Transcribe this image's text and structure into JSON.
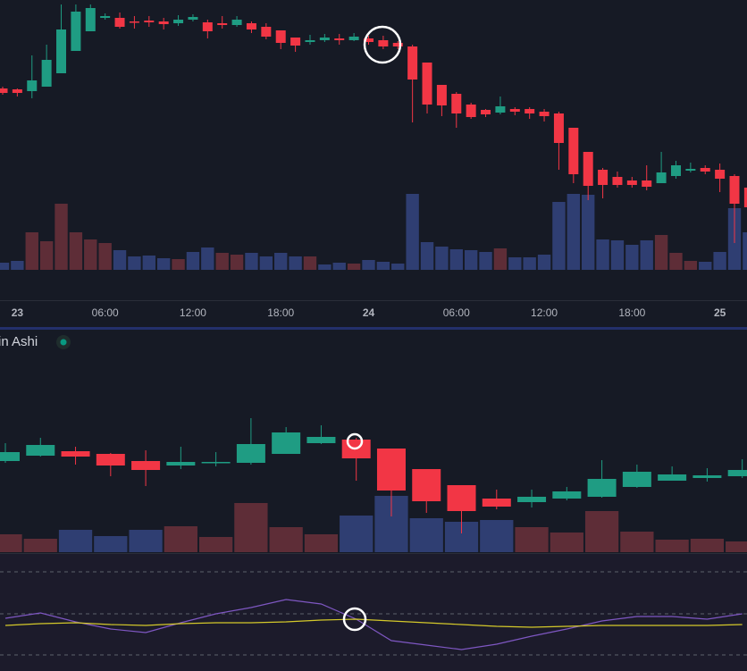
{
  "chart_data": [
    {
      "type": "candlestick",
      "categories": [
        null,
        "23",
        null,
        null,
        null,
        null,
        null,
        "06:00",
        null,
        null,
        null,
        null,
        null,
        "12:00",
        null,
        null,
        null,
        null,
        null,
        "18:00",
        null,
        null,
        null,
        null,
        null,
        "24",
        null,
        null,
        null,
        null,
        null,
        "06:00",
        null,
        null,
        null,
        null,
        null,
        "12:00",
        null,
        null,
        null,
        null,
        null,
        "18:00",
        null,
        null,
        null,
        null,
        null,
        "25",
        null,
        null
      ],
      "open": [
        237,
        236,
        234,
        239,
        254,
        279,
        301,
        316,
        316,
        312,
        313,
        312,
        310,
        314,
        311,
        310,
        308,
        310,
        306,
        302,
        294,
        289,
        291,
        293,
        291,
        293,
        291,
        288,
        284,
        266,
        241,
        231,
        219,
        213,
        210,
        214,
        214,
        211,
        209,
        193,
        166,
        146,
        138,
        134,
        134,
        131,
        139,
        145,
        148,
        146,
        139,
        126
      ],
      "high": [
        239,
        237,
        274,
        286,
        331,
        331,
        331,
        321,
        322,
        318,
        318,
        316,
        319,
        320,
        314,
        318,
        318,
        312,
        310,
        302,
        294,
        297,
        298,
        298,
        299,
        296,
        296,
        290,
        286,
        266,
        241,
        233,
        221,
        214,
        228,
        216,
        216,
        214,
        211,
        193,
        166,
        148,
        144,
        138,
        151,
        166,
        156,
        154,
        151,
        153,
        141,
        131
      ],
      "low": [
        230,
        228,
        226,
        239,
        254,
        279,
        301,
        314,
        304,
        304,
        306,
        303,
        307,
        312,
        293,
        304,
        306,
        299,
        292,
        281,
        278,
        286,
        289,
        286,
        290,
        286,
        281,
        281,
        199,
        209,
        206,
        193,
        203,
        205,
        208,
        207,
        203,
        200,
        146,
        131,
        112,
        114,
        126,
        126,
        123,
        131,
        136,
        143,
        141,
        121,
        64,
        101
      ],
      "close": [
        232,
        232,
        246,
        269,
        303,
        323,
        327,
        318,
        306,
        311,
        311,
        309,
        314,
        317,
        301,
        308,
        314,
        303,
        295,
        288,
        285,
        291,
        294,
        291,
        295,
        289,
        284,
        284,
        247,
        219,
        218,
        209,
        205,
        208,
        217,
        211,
        209,
        206,
        176,
        141,
        128,
        129,
        129,
        129,
        127,
        143,
        151,
        147,
        144,
        136,
        108,
        104
      ],
      "ylim": [
        0,
        336
      ],
      "up_color": "#1f9c83",
      "down_color": "#f23645",
      "volume": {
        "values": [
          8,
          10,
          42,
          32,
          74,
          42,
          34,
          30,
          22,
          15,
          16,
          13,
          12,
          20,
          25,
          19,
          17,
          19,
          15,
          19,
          15,
          15,
          6,
          8,
          7,
          11,
          9,
          7,
          85,
          31,
          26,
          23,
          22,
          20,
          24,
          14,
          14,
          17,
          76,
          85,
          84,
          34,
          33,
          28,
          33,
          39,
          19,
          10,
          9,
          20,
          69,
          42
        ],
        "colors": [
          "#2f3e72",
          "#2f3e72",
          "#5e2d37",
          "#5e2d37",
          "#5e2d37",
          "#5e2d37",
          "#5e2d37",
          "#5e2d37",
          "#2f3e72",
          "#2f3e72",
          "#2f3e72",
          "#2f3e72",
          "#5e2d37",
          "#2f3e72",
          "#2f3e72",
          "#5e2d37",
          "#5e2d37",
          "#2f3e72",
          "#2f3e72",
          "#2f3e72",
          "#2f3e72",
          "#5e2d37",
          "#2f3e72",
          "#2f3e72",
          "#5e2d37",
          "#2f3e72",
          "#2f3e72",
          "#2f3e72",
          "#2f3e72",
          "#2f3e72",
          "#2f3e72",
          "#2f3e72",
          "#2f3e72",
          "#2f3e72",
          "#5e2d37",
          "#2f3e72",
          "#2f3e72",
          "#2f3e72",
          "#2f3e72",
          "#2f3e72",
          "#2f3e72",
          "#2f3e72",
          "#2f3e72",
          "#2f3e72",
          "#2f3e72",
          "#5e2d37",
          "#5e2d37",
          "#5e2d37",
          "#2f3e72",
          "#2f3e72",
          "#2f3e72",
          "#2f3e72"
        ],
        "ylim": [
          0,
          302
        ]
      }
    },
    {
      "type": "candlestick",
      "title": "in Ashi",
      "open": [
        104,
        110,
        115,
        112,
        104,
        99,
        102,
        102,
        112,
        124,
        128,
        118,
        95,
        77,
        62,
        58,
        62,
        64,
        75,
        82,
        85,
        87
      ],
      "high": [
        124,
        130,
        120,
        113,
        116,
        120,
        114,
        152,
        142,
        144,
        130,
        118,
        95,
        77,
        72,
        72,
        75,
        105,
        100,
        98,
        96,
        106
      ],
      "low": [
        102,
        109,
        100,
        87,
        76,
        95,
        98,
        100,
        112,
        123,
        82,
        42,
        46,
        23,
        50,
        52,
        60,
        63,
        74,
        82,
        81,
        85
      ],
      "close": [
        114,
        122,
        109,
        99,
        94,
        103,
        103,
        123,
        136,
        131,
        107,
        71,
        59,
        48,
        53,
        64,
        70,
        84,
        92,
        89,
        88,
        94
      ],
      "ylim": [
        0,
        252
      ],
      "up_color": "#1f9c83",
      "down_color": "#f23645",
      "volume": {
        "values": [
          20,
          15,
          25,
          18,
          25,
          29,
          17,
          55,
          28,
          20,
          41,
          63,
          38,
          34,
          36,
          28,
          22,
          46,
          23,
          14,
          15,
          12
        ],
        "colors": [
          "#5e2d37",
          "#5e2d37",
          "#2f3e72",
          "#2f3e72",
          "#2f3e72",
          "#5e2d37",
          "#5e2d37",
          "#5e2d37",
          "#5e2d37",
          "#5e2d37",
          "#2f3e72",
          "#2f3e72",
          "#2f3e72",
          "#2f3e72",
          "#2f3e72",
          "#5e2d37",
          "#5e2d37",
          "#5e2d37",
          "#5e2d37",
          "#5e2d37",
          "#5e2d37",
          "#5e2d37"
        ],
        "ylim": [
          0,
          250
        ]
      }
    },
    {
      "type": "line",
      "series": [
        {
          "color": "#7e57c2",
          "values": [
            59,
            65,
            55,
            47,
            43,
            54,
            64,
            71,
            80,
            75,
            58,
            34,
            29,
            24,
            30,
            39,
            47,
            56,
            61,
            61,
            58,
            64
          ]
        },
        {
          "color": "#d4c92a",
          "values": [
            51,
            53,
            54,
            52,
            51,
            53,
            54,
            54,
            55,
            57,
            58,
            56,
            54,
            52,
            50,
            49,
            50,
            51,
            51,
            51,
            51,
            52
          ]
        }
      ],
      "levels": [
        111,
        64,
        18
      ],
      "ylim": [
        0,
        131
      ]
    }
  ]
}
